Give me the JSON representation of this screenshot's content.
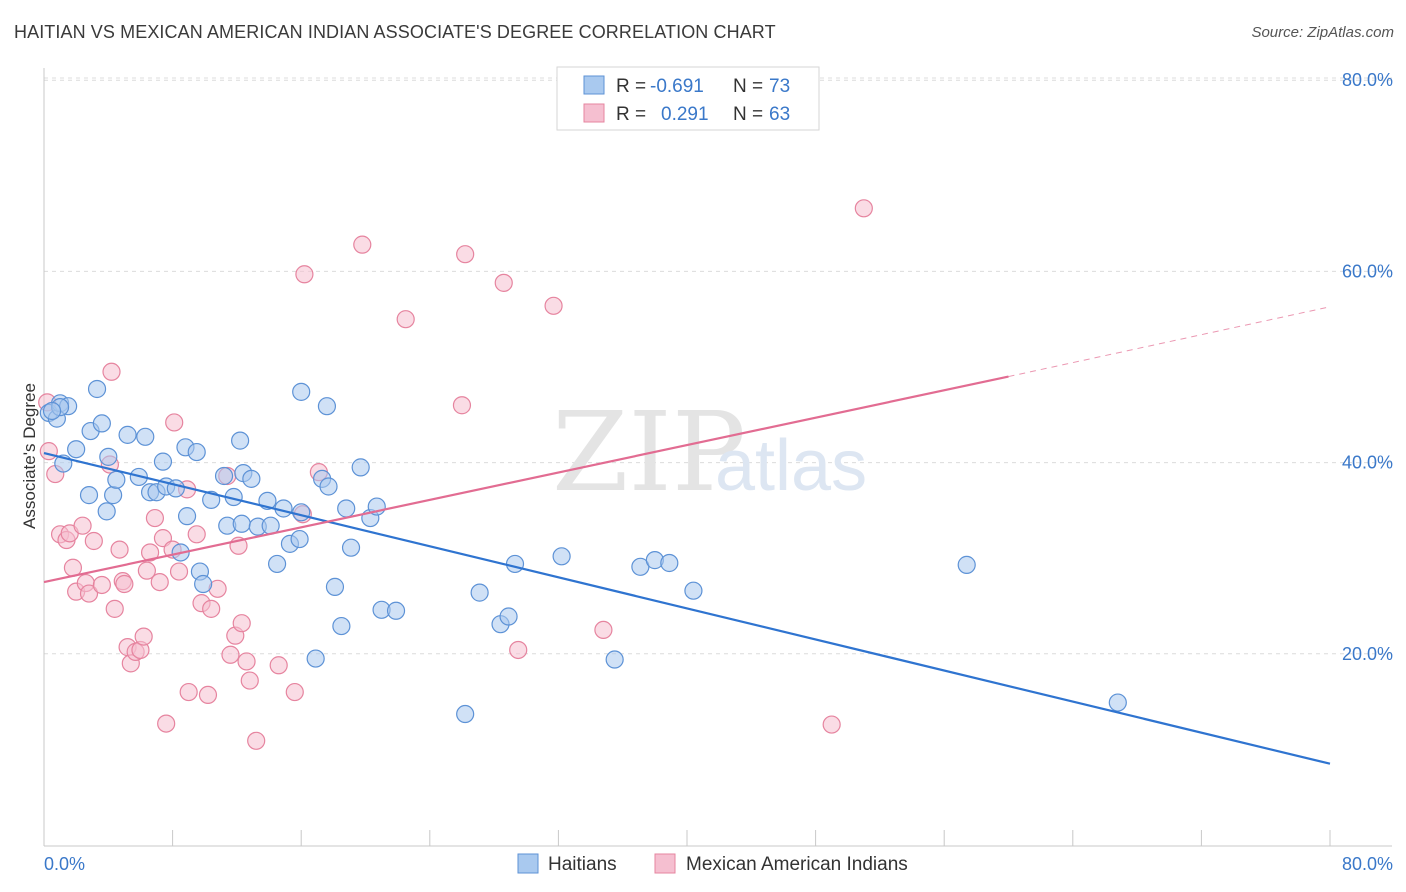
{
  "title": "HAITIAN VS MEXICAN AMERICAN INDIAN ASSOCIATE'S DEGREE CORRELATION CHART",
  "source": "Source: ZipAtlas.com",
  "watermark": {
    "zip": "ZIP",
    "atlas": "atlas"
  },
  "colors": {
    "blue_fill": "#a9c9ef",
    "blue_stroke": "#5d92d6",
    "blue_line": "#2f74d0",
    "pink_fill": "#f5bfd0",
    "pink_stroke": "#e6849f",
    "pink_line": "#e26c92",
    "tick": "#3a78c9"
  },
  "legend": {
    "rows": [
      {
        "r_label": "R =",
        "r_value": "-0.691",
        "n_label": "N =",
        "n_value": "73"
      },
      {
        "r_label": "R =",
        "r_value": "0.291",
        "n_label": "N =",
        "n_value": "63"
      }
    ]
  },
  "bottom_legend": [
    "Haitians",
    "Mexican American Indians"
  ],
  "chart_data": {
    "type": "scatter",
    "title": "HAITIAN VS MEXICAN AMERICAN INDIAN ASSOCIATE'S DEGREE CORRELATION CHART",
    "xlabel": "",
    "ylabel": "Associate's Degree",
    "xlim": [
      0,
      80
    ],
    "ylim": [
      0,
      80
    ],
    "x_tick_labels": [
      "0.0%",
      "80.0%"
    ],
    "y_ticks": [
      20,
      40,
      60,
      80
    ],
    "y_tick_labels": [
      "20.0%",
      "40.0%",
      "60.0%",
      "80.0%"
    ],
    "grid": true,
    "legend_position": "top-center",
    "series": [
      {
        "name": "Haitians",
        "r": -0.691,
        "n": 73,
        "trend": {
          "x0": 0,
          "y0": 41.0,
          "x1": 80,
          "y1": 8.5
        },
        "points": [
          [
            0.3,
            45.2
          ],
          [
            0.8,
            44.6
          ],
          [
            1.0,
            46.2
          ],
          [
            1.5,
            45.9
          ],
          [
            3.3,
            47.7
          ],
          [
            1.2,
            39.9
          ],
          [
            2.0,
            41.4
          ],
          [
            2.9,
            43.3
          ],
          [
            3.6,
            44.1
          ],
          [
            4.0,
            40.6
          ],
          [
            2.8,
            36.6
          ],
          [
            4.3,
            36.6
          ],
          [
            4.5,
            38.2
          ],
          [
            3.9,
            34.9
          ],
          [
            5.2,
            42.9
          ],
          [
            6.3,
            42.7
          ],
          [
            5.9,
            38.5
          ],
          [
            7.4,
            40.1
          ],
          [
            6.6,
            36.9
          ],
          [
            7.0,
            36.9
          ],
          [
            7.6,
            37.5
          ],
          [
            8.2,
            37.3
          ],
          [
            8.8,
            41.6
          ],
          [
            9.5,
            41.1
          ],
          [
            8.9,
            34.4
          ],
          [
            10.4,
            36.1
          ],
          [
            11.2,
            38.6
          ],
          [
            11.4,
            33.4
          ],
          [
            11.8,
            36.4
          ],
          [
            12.3,
            33.6
          ],
          [
            12.2,
            42.3
          ],
          [
            12.4,
            38.9
          ],
          [
            12.9,
            38.3
          ],
          [
            13.3,
            33.3
          ],
          [
            14.1,
            33.4
          ],
          [
            13.9,
            36.0
          ],
          [
            14.9,
            35.2
          ],
          [
            16.0,
            34.8
          ],
          [
            15.3,
            31.5
          ],
          [
            15.9,
            32.0
          ],
          [
            14.5,
            29.4
          ],
          [
            16.0,
            47.4
          ],
          [
            17.6,
            45.9
          ],
          [
            17.3,
            38.3
          ],
          [
            17.7,
            37.5
          ],
          [
            19.7,
            39.5
          ],
          [
            18.8,
            35.2
          ],
          [
            20.3,
            34.2
          ],
          [
            20.7,
            35.4
          ],
          [
            19.1,
            31.1
          ],
          [
            9.7,
            28.6
          ],
          [
            9.9,
            27.3
          ],
          [
            8.5,
            30.6
          ],
          [
            18.1,
            27.0
          ],
          [
            18.5,
            22.9
          ],
          [
            16.9,
            19.5
          ],
          [
            21.0,
            24.6
          ],
          [
            21.9,
            24.5
          ],
          [
            26.2,
            13.7
          ],
          [
            27.1,
            26.4
          ],
          [
            28.4,
            23.1
          ],
          [
            28.9,
            23.9
          ],
          [
            29.3,
            29.4
          ],
          [
            32.2,
            30.2
          ],
          [
            35.5,
            19.4
          ],
          [
            37.1,
            29.1
          ],
          [
            38.0,
            29.8
          ],
          [
            38.9,
            29.5
          ],
          [
            40.4,
            26.6
          ],
          [
            57.4,
            29.3
          ],
          [
            66.8,
            14.9
          ],
          [
            1.0,
            45.8
          ],
          [
            0.5,
            45.4
          ]
        ]
      },
      {
        "name": "Mexican American Indians",
        "r": 0.291,
        "n": 63,
        "trend": {
          "x0": 0,
          "y0": 27.5,
          "x1": 60,
          "y1": 49.0,
          "dash_to_x": 80,
          "dash_to_y": 56.3
        },
        "points": [
          [
            0.2,
            46.3
          ],
          [
            0.3,
            41.2
          ],
          [
            0.7,
            38.8
          ],
          [
            1.0,
            32.5
          ],
          [
            1.4,
            31.9
          ],
          [
            1.6,
            32.6
          ],
          [
            2.4,
            33.4
          ],
          [
            1.8,
            29.0
          ],
          [
            2.0,
            26.5
          ],
          [
            2.6,
            27.4
          ],
          [
            2.8,
            26.3
          ],
          [
            3.1,
            31.8
          ],
          [
            3.6,
            27.2
          ],
          [
            4.1,
            39.8
          ],
          [
            4.2,
            49.5
          ],
          [
            4.4,
            24.7
          ],
          [
            4.7,
            30.9
          ],
          [
            4.9,
            27.6
          ],
          [
            5.0,
            27.3
          ],
          [
            5.2,
            20.7
          ],
          [
            5.4,
            19.0
          ],
          [
            5.7,
            20.2
          ],
          [
            6.0,
            20.4
          ],
          [
            6.2,
            21.8
          ],
          [
            6.4,
            28.7
          ],
          [
            6.6,
            30.6
          ],
          [
            6.9,
            34.2
          ],
          [
            7.2,
            27.5
          ],
          [
            7.4,
            32.1
          ],
          [
            7.6,
            12.7
          ],
          [
            8.0,
            30.9
          ],
          [
            8.1,
            44.2
          ],
          [
            8.4,
            28.6
          ],
          [
            8.9,
            37.2
          ],
          [
            9.0,
            16.0
          ],
          [
            9.5,
            32.5
          ],
          [
            9.8,
            25.3
          ],
          [
            10.2,
            15.7
          ],
          [
            10.4,
            24.7
          ],
          [
            10.8,
            26.8
          ],
          [
            11.4,
            38.6
          ],
          [
            11.6,
            19.9
          ],
          [
            11.9,
            21.9
          ],
          [
            12.1,
            31.3
          ],
          [
            12.3,
            23.2
          ],
          [
            12.6,
            19.2
          ],
          [
            12.8,
            17.2
          ],
          [
            13.2,
            10.9
          ],
          [
            14.6,
            18.8
          ],
          [
            15.6,
            16.0
          ],
          [
            16.1,
            34.6
          ],
          [
            16.2,
            59.7
          ],
          [
            17.1,
            39.0
          ],
          [
            19.8,
            62.8
          ],
          [
            22.5,
            55.0
          ],
          [
            26.0,
            46.0
          ],
          [
            26.2,
            61.8
          ],
          [
            28.6,
            58.8
          ],
          [
            29.5,
            20.4
          ],
          [
            31.7,
            56.4
          ],
          [
            34.8,
            22.5
          ],
          [
            49.0,
            12.6
          ],
          [
            51.0,
            66.6
          ]
        ]
      }
    ]
  }
}
